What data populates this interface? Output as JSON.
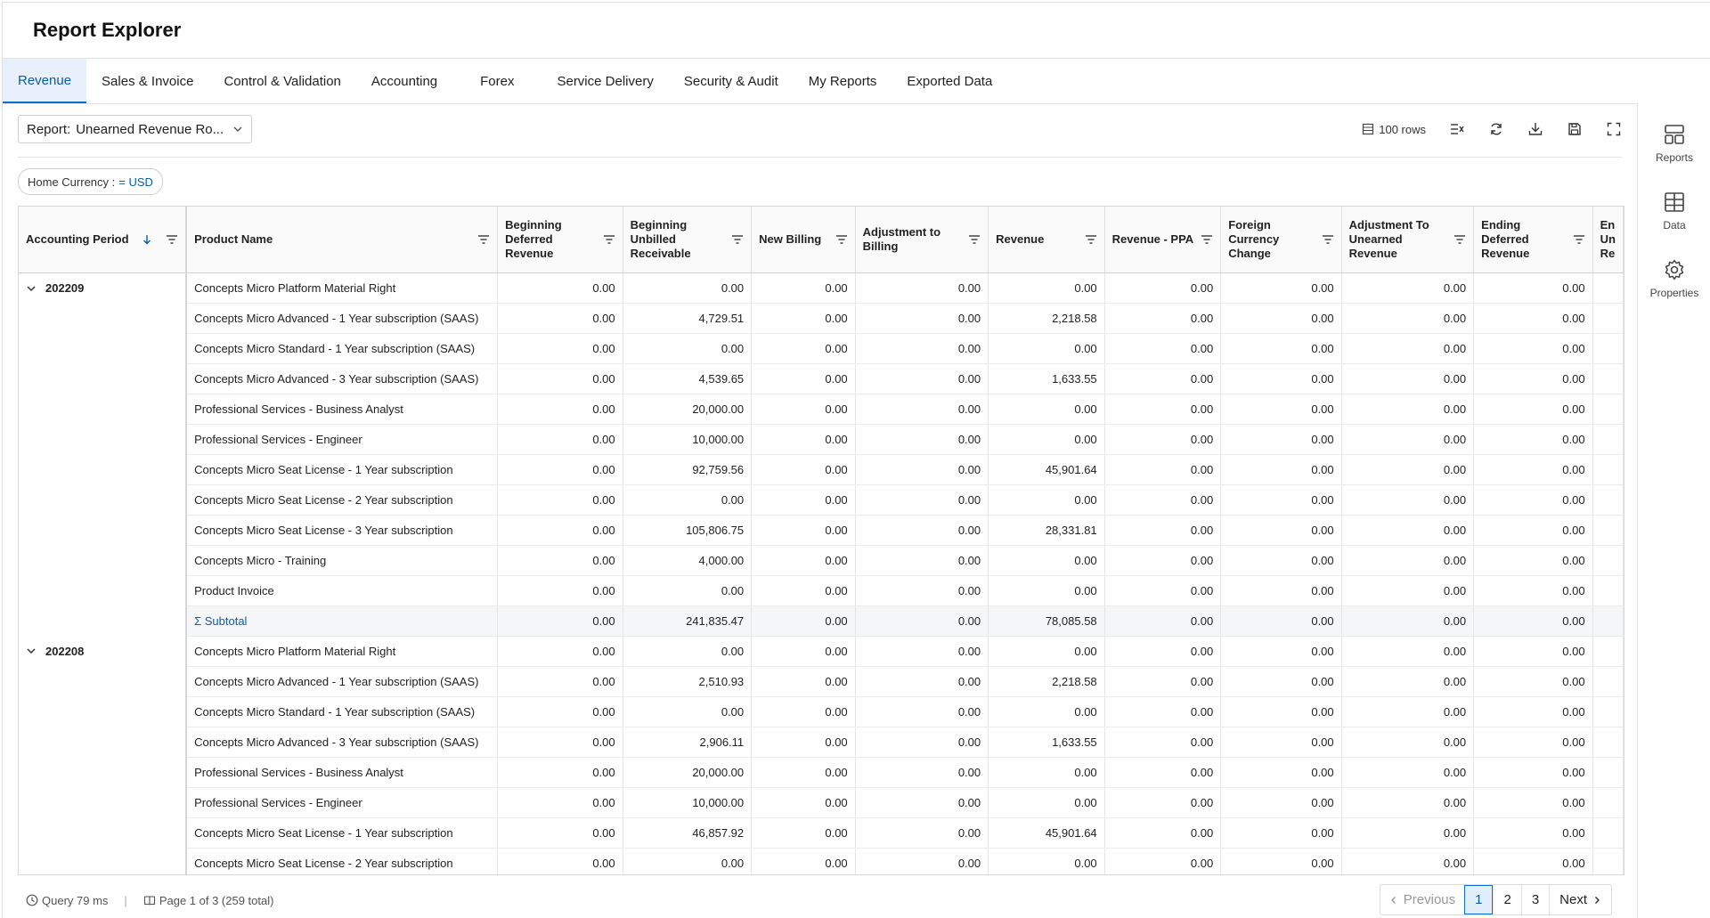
{
  "app": {
    "title": "Report Explorer"
  },
  "tabs": [
    {
      "label": "Revenue",
      "active": true
    },
    {
      "label": "Sales & Invoice"
    },
    {
      "label": "Control & Validation"
    },
    {
      "label": "Accounting"
    },
    {
      "label": "Forex"
    },
    {
      "label": "Service Delivery"
    },
    {
      "label": "Security & Audit"
    },
    {
      "label": "My Reports"
    },
    {
      "label": "Exported Data"
    }
  ],
  "toolbar": {
    "report_label": "Report:",
    "report_value": "Unearned Revenue Ro...",
    "rows_label": "100 rows"
  },
  "filter_chip": {
    "label": "Home Currency :",
    "value": "= USD"
  },
  "sidebar": {
    "reports": "Reports",
    "data": "Data",
    "properties": "Properties"
  },
  "columns": {
    "period": "Accounting Period",
    "product": "Product Name",
    "bdr": "Beginning Deferred Revenue",
    "bur": "Beginning Unbilled Receivable",
    "nb": "New Billing",
    "atb": "Adjustment to Billing",
    "rev": "Revenue",
    "ppa": "Revenue - PPA",
    "fcc": "Foreign Currency Change",
    "atu": "Adjustment To Unearned Revenue",
    "edr": "Ending Deferred Revenue",
    "eur": "En Un Re"
  },
  "groups": [
    {
      "period": "202209",
      "rows": [
        [
          "Concepts Micro Platform Material Right",
          "0.00",
          "0.00",
          "0.00",
          "0.00",
          "0.00",
          "0.00",
          "0.00",
          "0.00",
          "0.00"
        ],
        [
          "Concepts Micro Advanced - 1 Year subscription (SAAS)",
          "0.00",
          "4,729.51",
          "0.00",
          "0.00",
          "2,218.58",
          "0.00",
          "0.00",
          "0.00",
          "0.00"
        ],
        [
          "Concepts Micro Standard - 1 Year subscription (SAAS)",
          "0.00",
          "0.00",
          "0.00",
          "0.00",
          "0.00",
          "0.00",
          "0.00",
          "0.00",
          "0.00"
        ],
        [
          "Concepts Micro Advanced - 3 Year subscription (SAAS)",
          "0.00",
          "4,539.65",
          "0.00",
          "0.00",
          "1,633.55",
          "0.00",
          "0.00",
          "0.00",
          "0.00"
        ],
        [
          "Professional Services - Business Analyst",
          "0.00",
          "20,000.00",
          "0.00",
          "0.00",
          "0.00",
          "0.00",
          "0.00",
          "0.00",
          "0.00"
        ],
        [
          "Professional Services - Engineer",
          "0.00",
          "10,000.00",
          "0.00",
          "0.00",
          "0.00",
          "0.00",
          "0.00",
          "0.00",
          "0.00"
        ],
        [
          "Concepts Micro Seat License - 1 Year subscription",
          "0.00",
          "92,759.56",
          "0.00",
          "0.00",
          "45,901.64",
          "0.00",
          "0.00",
          "0.00",
          "0.00"
        ],
        [
          "Concepts Micro Seat License - 2 Year subscription",
          "0.00",
          "0.00",
          "0.00",
          "0.00",
          "0.00",
          "0.00",
          "0.00",
          "0.00",
          "0.00"
        ],
        [
          "Concepts Micro Seat License - 3 Year subscription",
          "0.00",
          "105,806.75",
          "0.00",
          "0.00",
          "28,331.81",
          "0.00",
          "0.00",
          "0.00",
          "0.00"
        ],
        [
          "Concepts Micro - Training",
          "0.00",
          "4,000.00",
          "0.00",
          "0.00",
          "0.00",
          "0.00",
          "0.00",
          "0.00",
          "0.00"
        ],
        [
          "Product Invoice",
          "0.00",
          "0.00",
          "0.00",
          "0.00",
          "0.00",
          "0.00",
          "0.00",
          "0.00",
          "0.00"
        ]
      ],
      "subtotal": [
        "Σ Subtotal",
        "0.00",
        "241,835.47",
        "0.00",
        "0.00",
        "78,085.58",
        "0.00",
        "0.00",
        "0.00",
        "0.00"
      ]
    },
    {
      "period": "202208",
      "rows": [
        [
          "Concepts Micro Platform Material Right",
          "0.00",
          "0.00",
          "0.00",
          "0.00",
          "0.00",
          "0.00",
          "0.00",
          "0.00",
          "0.00"
        ],
        [
          "Concepts Micro Advanced - 1 Year subscription (SAAS)",
          "0.00",
          "2,510.93",
          "0.00",
          "0.00",
          "2,218.58",
          "0.00",
          "0.00",
          "0.00",
          "0.00"
        ],
        [
          "Concepts Micro Standard - 1 Year subscription (SAAS)",
          "0.00",
          "0.00",
          "0.00",
          "0.00",
          "0.00",
          "0.00",
          "0.00",
          "0.00",
          "0.00"
        ],
        [
          "Concepts Micro Advanced - 3 Year subscription (SAAS)",
          "0.00",
          "2,906.11",
          "0.00",
          "0.00",
          "1,633.55",
          "0.00",
          "0.00",
          "0.00",
          "0.00"
        ],
        [
          "Professional Services - Business Analyst",
          "0.00",
          "20,000.00",
          "0.00",
          "0.00",
          "0.00",
          "0.00",
          "0.00",
          "0.00",
          "0.00"
        ],
        [
          "Professional Services - Engineer",
          "0.00",
          "10,000.00",
          "0.00",
          "0.00",
          "0.00",
          "0.00",
          "0.00",
          "0.00",
          "0.00"
        ],
        [
          "Concepts Micro Seat License - 1 Year subscription",
          "0.00",
          "46,857.92",
          "0.00",
          "0.00",
          "45,901.64",
          "0.00",
          "0.00",
          "0.00",
          "0.00"
        ],
        [
          "Concepts Micro Seat License - 2 Year subscription",
          "0.00",
          "0.00",
          "0.00",
          "0.00",
          "0.00",
          "0.00",
          "0.00",
          "0.00",
          "0.00"
        ]
      ]
    }
  ],
  "footer": {
    "query": "Query 79 ms",
    "page_info": "Page 1 of 3 (259 total)"
  },
  "pager": {
    "previous": "Previous",
    "pages": [
      "1",
      "2",
      "3"
    ],
    "current": "1",
    "next": "Next"
  },
  "colors": {
    "accent": "#0b6fd0",
    "tab_active_bg": "#e7f0fb"
  }
}
